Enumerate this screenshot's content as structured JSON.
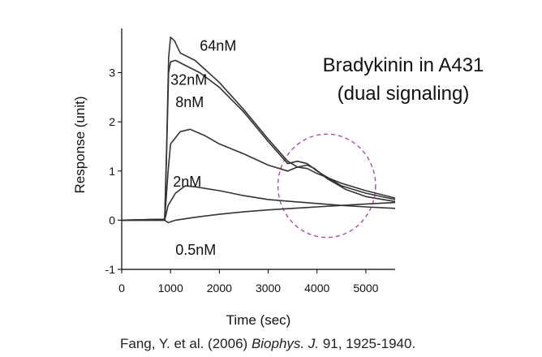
{
  "chart_data": {
    "type": "line",
    "xlabel": "Time (sec)",
    "ylabel": "Response (unit)",
    "xlim": [
      0,
      5600
    ],
    "ylim": [
      -1,
      3.9
    ],
    "x_ticks": [
      0,
      1000,
      2000,
      3000,
      4000,
      5000
    ],
    "y_ticks": [
      -1,
      0,
      1,
      2,
      3
    ],
    "annotation": {
      "line1": "Bradykinin in A431",
      "line2": "(dual signaling)"
    },
    "highlight_circle": {
      "center": [
        4200,
        0.7
      ],
      "radius_x": 1000,
      "radius_y": 1.05,
      "color": "#b04aa8"
    },
    "line_color": "#333333",
    "series": [
      {
        "name": "64nM",
        "label_at": [
          1600,
          3.45
        ],
        "points": [
          [
            0,
            0
          ],
          [
            880,
            0.02
          ],
          [
            920,
            1.5
          ],
          [
            960,
            3.3
          ],
          [
            1000,
            3.72
          ],
          [
            1080,
            3.65
          ],
          [
            1200,
            3.4
          ],
          [
            1500,
            3.25
          ],
          [
            2000,
            2.8
          ],
          [
            2500,
            2.25
          ],
          [
            3000,
            1.65
          ],
          [
            3400,
            1.2
          ],
          [
            3600,
            1.08
          ],
          [
            3800,
            1.05
          ],
          [
            4000,
            0.95
          ],
          [
            4500,
            0.75
          ],
          [
            5000,
            0.6
          ],
          [
            5600,
            0.45
          ]
        ]
      },
      {
        "name": "32nM",
        "label_at": [
          1000,
          2.75
        ],
        "points": [
          [
            0,
            0
          ],
          [
            880,
            0.02
          ],
          [
            920,
            1.4
          ],
          [
            960,
            3.0
          ],
          [
            1000,
            3.22
          ],
          [
            1100,
            3.25
          ],
          [
            1300,
            3.15
          ],
          [
            1600,
            3.0
          ],
          [
            2000,
            2.7
          ],
          [
            2500,
            2.2
          ],
          [
            3000,
            1.6
          ],
          [
            3400,
            1.15
          ],
          [
            3600,
            1.2
          ],
          [
            3800,
            1.15
          ],
          [
            4000,
            1.0
          ],
          [
            4500,
            0.7
          ],
          [
            5000,
            0.55
          ],
          [
            5600,
            0.42
          ]
        ]
      },
      {
        "name": "8nM",
        "label_at": [
          1100,
          2.3
        ],
        "points": [
          [
            0,
            0
          ],
          [
            880,
            0.02
          ],
          [
            950,
            1.0
          ],
          [
            1000,
            1.55
          ],
          [
            1200,
            1.8
          ],
          [
            1400,
            1.85
          ],
          [
            1700,
            1.72
          ],
          [
            2000,
            1.55
          ],
          [
            2500,
            1.35
          ],
          [
            3000,
            1.12
          ],
          [
            3400,
            1.0
          ],
          [
            3600,
            1.08
          ],
          [
            3800,
            1.12
          ],
          [
            3950,
            1.05
          ],
          [
            4200,
            0.85
          ],
          [
            4600,
            0.62
          ],
          [
            5000,
            0.48
          ],
          [
            5600,
            0.38
          ]
        ]
      },
      {
        "name": "2nM",
        "label_at": [
          1050,
          0.68
        ],
        "points": [
          [
            0,
            0
          ],
          [
            880,
            0.0
          ],
          [
            950,
            0.3
          ],
          [
            1100,
            0.55
          ],
          [
            1300,
            0.7
          ],
          [
            1500,
            0.68
          ],
          [
            2000,
            0.6
          ],
          [
            2500,
            0.5
          ],
          [
            3000,
            0.42
          ],
          [
            3500,
            0.38
          ],
          [
            4000,
            0.34
          ],
          [
            4500,
            0.3
          ],
          [
            5000,
            0.27
          ],
          [
            5600,
            0.24
          ]
        ]
      },
      {
        "name": "0.5nM",
        "label_at": [
          1100,
          -0.7
        ],
        "points": [
          [
            0,
            0
          ],
          [
            880,
            0.0
          ],
          [
            950,
            -0.05
          ],
          [
            1100,
            0.0
          ],
          [
            1500,
            0.06
          ],
          [
            2000,
            0.12
          ],
          [
            2500,
            0.17
          ],
          [
            3000,
            0.21
          ],
          [
            3500,
            0.24
          ],
          [
            4000,
            0.27
          ],
          [
            4500,
            0.3
          ],
          [
            5000,
            0.33
          ],
          [
            5600,
            0.36
          ]
        ]
      }
    ]
  },
  "citation": {
    "authors_year": "Fang, Y. et al. (2006) ",
    "journal": "Biophys. J.",
    "volume_pages": " 91, 1925-1940."
  }
}
